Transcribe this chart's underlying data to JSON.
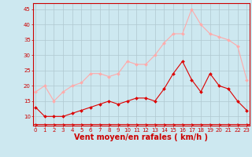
{
  "x": [
    0,
    1,
    2,
    3,
    4,
    5,
    6,
    7,
    8,
    9,
    10,
    11,
    12,
    13,
    14,
    15,
    16,
    17,
    18,
    19,
    20,
    21,
    22,
    23
  ],
  "y_mean": [
    13,
    10,
    10,
    10,
    11,
    12,
    13,
    14,
    15,
    14,
    15,
    16,
    16,
    15,
    19,
    24,
    28,
    22,
    18,
    24,
    20,
    19,
    15,
    12
  ],
  "y_gust": [
    18,
    20,
    15,
    18,
    20,
    21,
    24,
    24,
    23,
    24,
    28,
    27,
    27,
    30,
    34,
    37,
    37,
    45,
    40,
    37,
    36,
    35,
    33,
    22
  ],
  "background": "#cde8f0",
  "grid_color": "#b0c8d0",
  "line_mean_color": "#dd0000",
  "line_gust_color": "#ffaaaa",
  "xlabel": "Vent moyen/en rafales ( km/h )",
  "ylim": [
    7,
    47
  ],
  "yticks": [
    10,
    15,
    20,
    25,
    30,
    35,
    40,
    45
  ],
  "xticks": [
    0,
    1,
    2,
    3,
    4,
    5,
    6,
    7,
    8,
    9,
    10,
    11,
    12,
    13,
    14,
    15,
    16,
    17,
    18,
    19,
    20,
    21,
    22,
    23
  ],
  "xlabel_fontsize": 7,
  "xlabel_color": "#cc0000",
  "tick_fontsize": 5,
  "tick_color": "#cc0000",
  "spine_color": "#cc0000",
  "arrow_color": "#dd0000"
}
